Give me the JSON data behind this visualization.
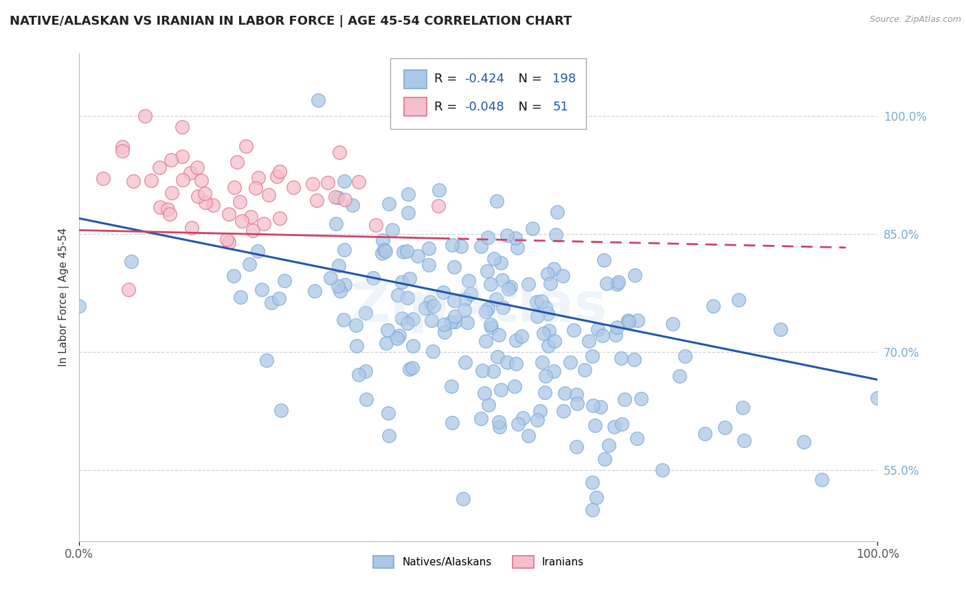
{
  "title": "NATIVE/ALASKAN VS IRANIAN IN LABOR FORCE | AGE 45-54 CORRELATION CHART",
  "source": "Source: ZipAtlas.com",
  "ylabel": "In Labor Force | Age 45-54",
  "watermark": "ZipAtlas",
  "blue_R": -0.424,
  "blue_N": 198,
  "pink_R": -0.048,
  "pink_N": 51,
  "blue_color": "#adc8e8",
  "blue_edge": "#7aaad4",
  "pink_color": "#f5bfcc",
  "pink_edge": "#e07090",
  "trend_blue": "#2255aa",
  "trend_pink": "#cc4466",
  "legend_box_blue": "#adc8e8",
  "legend_box_pink": "#f5bfcc",
  "xmin": 0.0,
  "xmax": 1.0,
  "ymin": 0.46,
  "ymax": 1.08,
  "yticks": [
    0.55,
    0.7,
    0.85,
    1.0
  ],
  "ytick_labels": [
    "55.0%",
    "70.0%",
    "85.0%",
    "100.0%"
  ],
  "xtick_labels": [
    "0.0%",
    "100.0%"
  ],
  "background_color": "#ffffff",
  "title_color": "#222222",
  "title_fontsize": 13,
  "label_fontsize": 11,
  "legend_value_color": "#2255aa",
  "legend_fontsize": 13,
  "blue_trend_start_y": 0.87,
  "blue_trend_end_y": 0.665,
  "pink_trend_start_y": 0.855,
  "pink_trend_end_y": 0.832
}
